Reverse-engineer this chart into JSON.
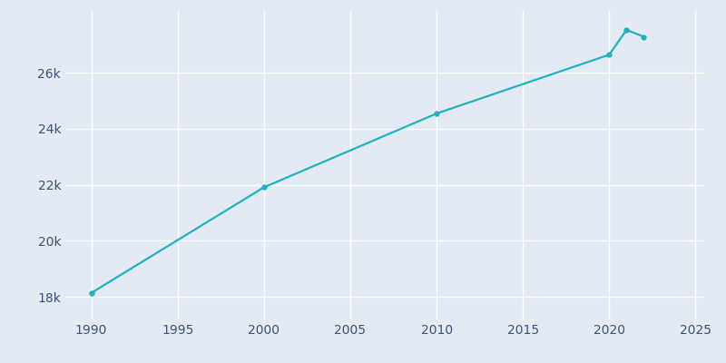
{
  "years": [
    1990,
    2000,
    2010,
    2020,
    2021,
    2022
  ],
  "population": [
    18145,
    21910,
    24541,
    26638,
    27523,
    27277
  ],
  "line_color": "#20B2BF",
  "marker_color": "#20B2BF",
  "background_color": "#e3eaf4",
  "grid_color": "#ffffff",
  "text_color": "#3d4f72",
  "xlim": [
    1988.5,
    2025.5
  ],
  "ylim": [
    17200,
    28200
  ],
  "xticks": [
    1990,
    1995,
    2000,
    2005,
    2010,
    2015,
    2020,
    2025
  ],
  "yticks": [
    18000,
    20000,
    22000,
    24000,
    26000
  ]
}
